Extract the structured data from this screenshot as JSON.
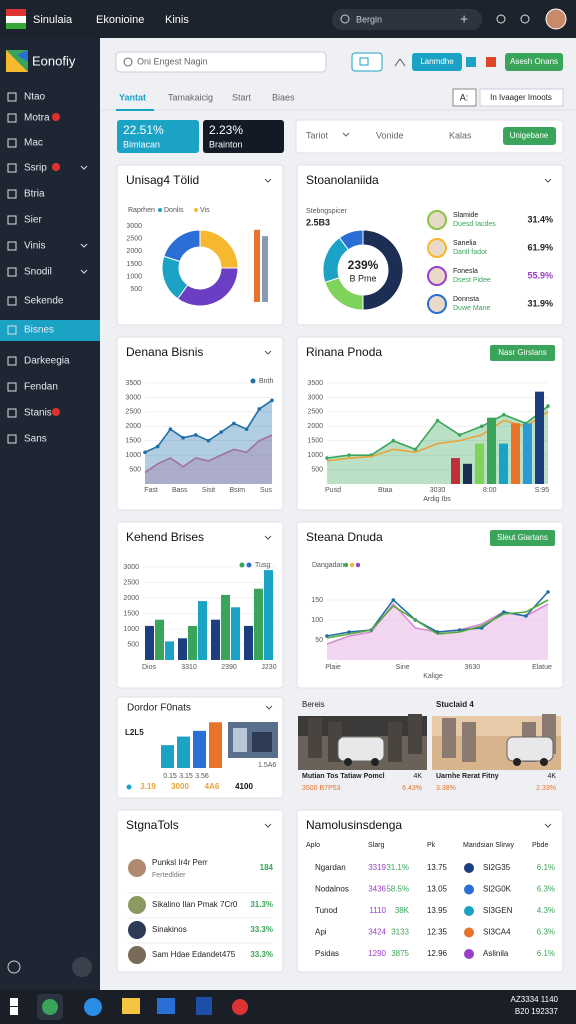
{
  "topbar": {
    "app": "Sinulaia",
    "menu": [
      "Ekonioine",
      "Kinis"
    ],
    "search": "Bergin"
  },
  "sidebar": {
    "brand": "Eonofiy",
    "items": [
      {
        "label": "Ntao"
      },
      {
        "label": "Motra",
        "badge": true
      },
      {
        "label": "Mac"
      },
      {
        "label": "Ssrip",
        "badge": true,
        "chevron": true
      },
      {
        "label": "Btria"
      },
      {
        "label": "Sier"
      },
      {
        "label": "Vinis",
        "chevron": true
      },
      {
        "label": "Snodil",
        "chevron": true
      },
      {
        "label": "Sekende"
      },
      {
        "label": "Bisnes",
        "active": true
      },
      {
        "label": "Darkeegia"
      },
      {
        "label": "Fendan"
      },
      {
        "label": "Stanis",
        "badge": true
      },
      {
        "label": "Sans"
      }
    ]
  },
  "toolbar": {
    "search": "Oni Engest Nagin",
    "button": "Lanmdhe",
    "button2": "Asesh Onans"
  },
  "tabs": {
    "items": [
      "Yantat",
      "Tamakaicig",
      "Start",
      "Biaes"
    ],
    "box": "A:",
    "button": "In Ivaager Imoots"
  },
  "stats": [
    {
      "value": "22.51%",
      "label": "Bimiacan"
    },
    {
      "value": "2.23%",
      "label": "Brainton"
    }
  ],
  "filters": {
    "items": [
      "Tariot",
      "Vonide",
      "Kalas"
    ],
    "button": "Unigebane"
  },
  "usage": {
    "title": "Unisag4 Tölid",
    "legend": [
      "Raprhen",
      "Donlis",
      "Vis"
    ],
    "legend_colors": [
      "#2a6fd6",
      "#1ba3c6",
      "#f5b82e"
    ],
    "donut": {
      "values": [
        25,
        35,
        20,
        20
      ],
      "colors": [
        "#f5b82e",
        "#6b3fc4",
        "#1ba3c6",
        "#2a6fd6"
      ]
    },
    "bars": {
      "values": [
        2850,
        2600
      ],
      "colors": [
        "#e8742c",
        "#8a99b3"
      ]
    },
    "ylim": [
      0,
      3000
    ],
    "yticks": [
      500,
      1000,
      1500,
      2000,
      2500,
      3000
    ]
  },
  "share": {
    "title": "Stoanolaniida",
    "label": "Stebngspicer",
    "label_value": "2.5B3",
    "center": "239%",
    "center_sub": "B Pme",
    "donut": {
      "values": [
        50,
        20,
        20,
        10
      ],
      "colors": [
        "#1d2e55",
        "#7ed35a",
        "#1ba3c6",
        "#2a6fd6"
      ]
    },
    "people": [
      {
        "name": "Slamide",
        "sub": "Duesd Iacdes",
        "pct": "31.4%"
      },
      {
        "name": "Sanelia",
        "sub": "Dantl fadot",
        "pct": "61.9%"
      },
      {
        "name": "Fonesla",
        "sub": "Dsest Pidee",
        "pct": "55.9%"
      },
      {
        "name": "Donnsta",
        "sub": "Duwe Mane",
        "pct": "31.9%"
      }
    ]
  },
  "trend": {
    "title": "Denana Bisnis",
    "legend": "Bnth",
    "x_axis_labels": [
      "Fast",
      "Bass",
      "Sisit",
      "Bsim",
      "Sus"
    ],
    "ylim": [
      0,
      3500
    ],
    "yticks": [
      500,
      1000,
      1500,
      2000,
      2500,
      3000,
      3500
    ],
    "series": [
      {
        "color": "#e8739a",
        "values": [
          400,
          700,
          900,
          600,
          900,
          800,
          1000,
          1200,
          1100,
          1500,
          1700
        ]
      },
      {
        "color": "#1e6fa8",
        "values": [
          1100,
          1300,
          1900,
          1600,
          1700,
          1500,
          1800,
          2100,
          1900,
          2600,
          2900
        ]
      }
    ]
  },
  "mixed": {
    "title": "Rinana Pnoda",
    "button": "Nasr Girslans",
    "x_axis_labels": [
      "Pusd",
      "Btaa",
      "3030",
      "8:00",
      "S:95"
    ],
    "sub": "Ardig Ibs",
    "ylim": [
      0,
      3500
    ],
    "yticks": [
      500,
      1000,
      1500,
      2000,
      2500,
      3000,
      3500
    ],
    "line": {
      "color": "#3aa55a",
      "values": [
        900,
        1000,
        1000,
        1500,
        1200,
        2200,
        1700,
        2000,
        2400,
        2100,
        2700
      ]
    },
    "line2": {
      "color": "#e8a43a",
      "values": [
        800,
        900,
        950,
        1200,
        1100,
        1400,
        1500,
        1700,
        2200,
        2000,
        2500
      ]
    },
    "bars": {
      "values": [
        900,
        700,
        1400,
        2300,
        1400,
        2100,
        2100,
        3200
      ],
      "colors": [
        "#c0303a",
        "#1d2e55",
        "#7ed35a",
        "#3aa55a",
        "#1ba3c6",
        "#e8742c",
        "#2a9ad6",
        "#1d3e7e"
      ]
    }
  },
  "kehend": {
    "title": "Kehend Brises",
    "legend": "Tusg",
    "x_axis_labels": [
      "Dios",
      "3310",
      "2390",
      "J230"
    ],
    "ylim": [
      0,
      3000
    ],
    "yticks": [
      500,
      1000,
      1500,
      2000,
      2500,
      3000
    ],
    "series": [
      {
        "color": "#1d3e7e",
        "values": [
          1100,
          700,
          1300,
          1100
        ]
      },
      {
        "color": "#3aa55a",
        "values": [
          1300,
          1100,
          2100,
          2300
        ]
      },
      {
        "color": "#1ba3c6",
        "values": [
          600,
          1900,
          1700,
          2900
        ]
      }
    ]
  },
  "steana": {
    "title": "Steana Dnuda",
    "button": "Sleut Giartans",
    "label": "Dangadan",
    "x_axis_labels": [
      "Plaie",
      "Sine",
      "3630",
      "Elatue"
    ],
    "sub": "Kalige",
    "ylim": [
      0,
      200
    ],
    "yticks": [
      50,
      100,
      150
    ],
    "series": [
      {
        "color": "#d98bd6",
        "values": [
          40,
          60,
          70,
          140,
          80,
          70,
          75,
          90,
          120,
          110,
          140
        ]
      },
      {
        "color": "#1e6fa8",
        "values": [
          60,
          70,
          75,
          150,
          100,
          70,
          75,
          80,
          120,
          110,
          170
        ]
      },
      {
        "color": "#5aaa3a",
        "values": [
          55,
          65,
          75,
          135,
          100,
          65,
          70,
          85,
          115,
          120,
          150
        ]
      }
    ]
  },
  "formats": {
    "title": "Dordor F0nats",
    "label": "L2L5",
    "bars": {
      "values": [
        1.6,
        2.2,
        2.6,
        3.2
      ],
      "colors": [
        "#1ba3c6",
        "#1ba3c6",
        "#2a6fd6",
        "#e8742c"
      ]
    },
    "ylim": [
      0,
      3.5
    ],
    "side": "1.5A6",
    "x_axis_labels": [
      "0.15",
      "3.15",
      "3.56"
    ],
    "footer": [
      "3.19",
      "3000",
      "4A6",
      "4100"
    ]
  },
  "gallery": [
    {
      "title": "Bereis",
      "caption": "Mutian Tos Tatiaw Pomcl",
      "tag": "4K",
      "value": "3500 B7P53",
      "pct": "6.43%"
    },
    {
      "title": "Stuclaid 4",
      "caption": "Uarnhe Rerat Fitny",
      "tag": "4K",
      "value": "3.38%",
      "pct": "2.33%"
    }
  ],
  "tools": {
    "title": "StgnaTols",
    "items": [
      {
        "name": "Punksl Ir4r Perr",
        "sub": "Fertedldier",
        "value": "184"
      },
      {
        "name": "Sikalino Ilan Pmak 7Cr0",
        "value": "31.3%"
      },
      {
        "name": "Sinakinos",
        "value": "33.3%"
      },
      {
        "name": "Sam Hdae Edandet475",
        "value": "33.3%"
      }
    ]
  },
  "table": {
    "title": "Namolusinsdenga",
    "headers": [
      "Aplo",
      "Slarg",
      "Pk",
      "Mandsian Slirwy",
      "Pbde"
    ],
    "rows": [
      [
        "Ngardan",
        "3319",
        "31.1%",
        "13.75",
        "SI2G35",
        "6.1%"
      ],
      [
        "Nodalnos",
        "3436",
        "58.5%",
        "13.05",
        "SI2G0K",
        "6.3%"
      ],
      [
        "Tunod",
        "1110",
        "38K",
        "13.95",
        "SI3GEN",
        "4.3%"
      ],
      [
        "Api",
        "3424",
        "3133",
        "12.35",
        "SI3CA4",
        "6.3%"
      ],
      [
        "Psidas",
        "1290",
        "3875",
        "12.96",
        "Aslinila",
        "6.1%"
      ]
    ]
  },
  "taskbar": {
    "time": "AZ3334 1140",
    "date": "B20 192337"
  }
}
